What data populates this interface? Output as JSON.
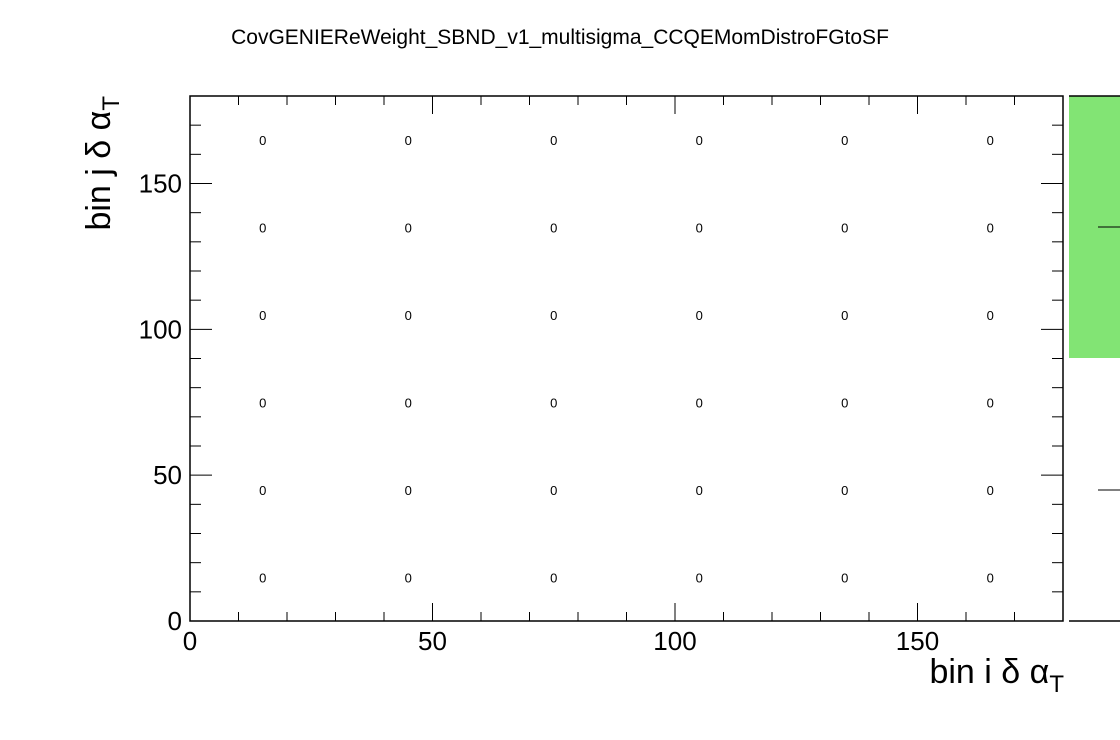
{
  "chart_data": {
    "type": "heatmap",
    "title": "CovGENIEReWeight_SBND_v1_multisigma_CCQEMomDistroFGtoSF",
    "xlabel": {
      "main": "bin i δ α",
      "sub": "T"
    },
    "ylabel": {
      "main": "bin j δ α",
      "sub": "T"
    },
    "xlim": [
      0,
      180
    ],
    "ylim": [
      0,
      180
    ],
    "xticks": [
      "0",
      "50",
      "100",
      "150"
    ],
    "yticks": [
      "0",
      "50",
      "100",
      "150"
    ],
    "x_bin_centers": [
      15,
      45,
      75,
      105,
      135,
      165
    ],
    "y_bin_centers": [
      15,
      45,
      75,
      105,
      135,
      165
    ],
    "cell_labels": [
      [
        "0",
        "0",
        "0",
        "0",
        "0",
        "0"
      ],
      [
        "0",
        "0",
        "0",
        "0",
        "0",
        "0"
      ],
      [
        "0",
        "0",
        "0",
        "0",
        "0",
        "0"
      ],
      [
        "0",
        "0",
        "0",
        "0",
        "0",
        "0"
      ],
      [
        "0",
        "0",
        "0",
        "0",
        "0",
        "0"
      ],
      [
        "0",
        "0",
        "0",
        "0",
        "0",
        "0"
      ]
    ],
    "palette_color": "#82e474",
    "grid": false,
    "legend": "color palette on right"
  }
}
